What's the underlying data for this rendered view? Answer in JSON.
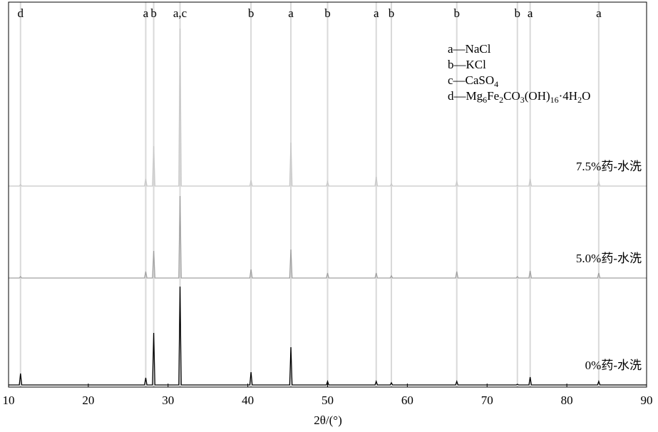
{
  "chart_data": {
    "type": "line",
    "x_label": "2θ/(°)",
    "xlim": [
      10,
      90
    ],
    "xticks": [
      10,
      20,
      30,
      40,
      50,
      60,
      70,
      80,
      90
    ],
    "ylim": [
      0,
      540
    ],
    "x": [
      10,
      11.35,
      11.5,
      11.65,
      27.05,
      27.2,
      27.35,
      28.05,
      28.2,
      28.35,
      31.35,
      31.5,
      31.65,
      40.25,
      40.4,
      40.55,
      45.25,
      45.4,
      45.55,
      49.85,
      50,
      50.15,
      55.95,
      56.1,
      56.25,
      57.85,
      58,
      58.15,
      66.05,
      66.2,
      66.35,
      73.65,
      73.8,
      73.95,
      75.25,
      75.4,
      75.55,
      83.85,
      84,
      84.15,
      90
    ],
    "series": [
      {
        "name": "7.5%药-水洗",
        "color": "#c8c8c8",
        "values": [
          282,
          282,
          284,
          282,
          282,
          292,
          282,
          282,
          338,
          282,
          282,
          503,
          282,
          282,
          290,
          282,
          282,
          343,
          282,
          282,
          288,
          282,
          282,
          295,
          282,
          282,
          285,
          282,
          282,
          288,
          282,
          282,
          283,
          282,
          282,
          292,
          282,
          282,
          288,
          282,
          282
        ]
      },
      {
        "name": "5.0%药-水洗",
        "color": "#a0a0a0",
        "values": [
          153,
          153,
          155,
          153,
          153,
          162,
          153,
          153,
          191,
          153,
          153,
          268,
          153,
          153,
          165,
          153,
          153,
          193,
          153,
          153,
          160,
          153,
          153,
          160,
          153,
          153,
          156,
          153,
          153,
          162,
          153,
          153,
          155,
          153,
          153,
          163,
          153,
          153,
          160,
          153,
          153
        ]
      },
      {
        "name": "0%药-水洗",
        "color": "#000000",
        "values": [
          3,
          3,
          19,
          3,
          3,
          13,
          3,
          3,
          76,
          3,
          3,
          141,
          3,
          3,
          21,
          3,
          3,
          56,
          3,
          3,
          8,
          3,
          3,
          8,
          3,
          3,
          6,
          3,
          3,
          8,
          3,
          3,
          4,
          3,
          3,
          14,
          3,
          3,
          8,
          3,
          3
        ]
      }
    ],
    "reference_color": "#d9d9d9",
    "reference_lines": [
      {
        "x": 11.5,
        "label": "d"
      },
      {
        "x": 27.2,
        "label": "a"
      },
      {
        "x": 28.2,
        "label": "b"
      },
      {
        "x": 31.5,
        "label": "a,c"
      },
      {
        "x": 40.4,
        "label": "b"
      },
      {
        "x": 45.4,
        "label": "a"
      },
      {
        "x": 50.0,
        "label": "b"
      },
      {
        "x": 56.1,
        "label": "a"
      },
      {
        "x": 58.0,
        "label": "b"
      },
      {
        "x": 66.2,
        "label": "b"
      },
      {
        "x": 73.8,
        "label": "b"
      },
      {
        "x": 75.4,
        "label": "a"
      },
      {
        "x": 84.0,
        "label": "a"
      }
    ],
    "phase_key": [
      "a—NaCl",
      "b—KCl",
      "c—CaSO4",
      "d—Mg6Fe2CO3(OH)16·4H2O"
    ]
  }
}
